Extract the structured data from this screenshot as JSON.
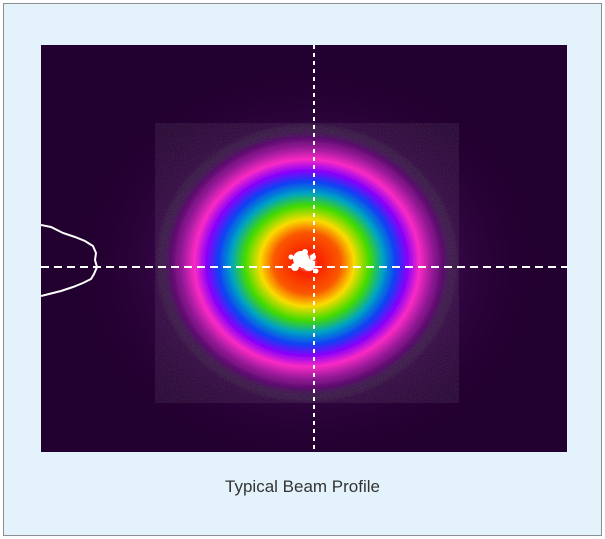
{
  "figure": {
    "caption": "Typical Beam Profile"
  }
}
